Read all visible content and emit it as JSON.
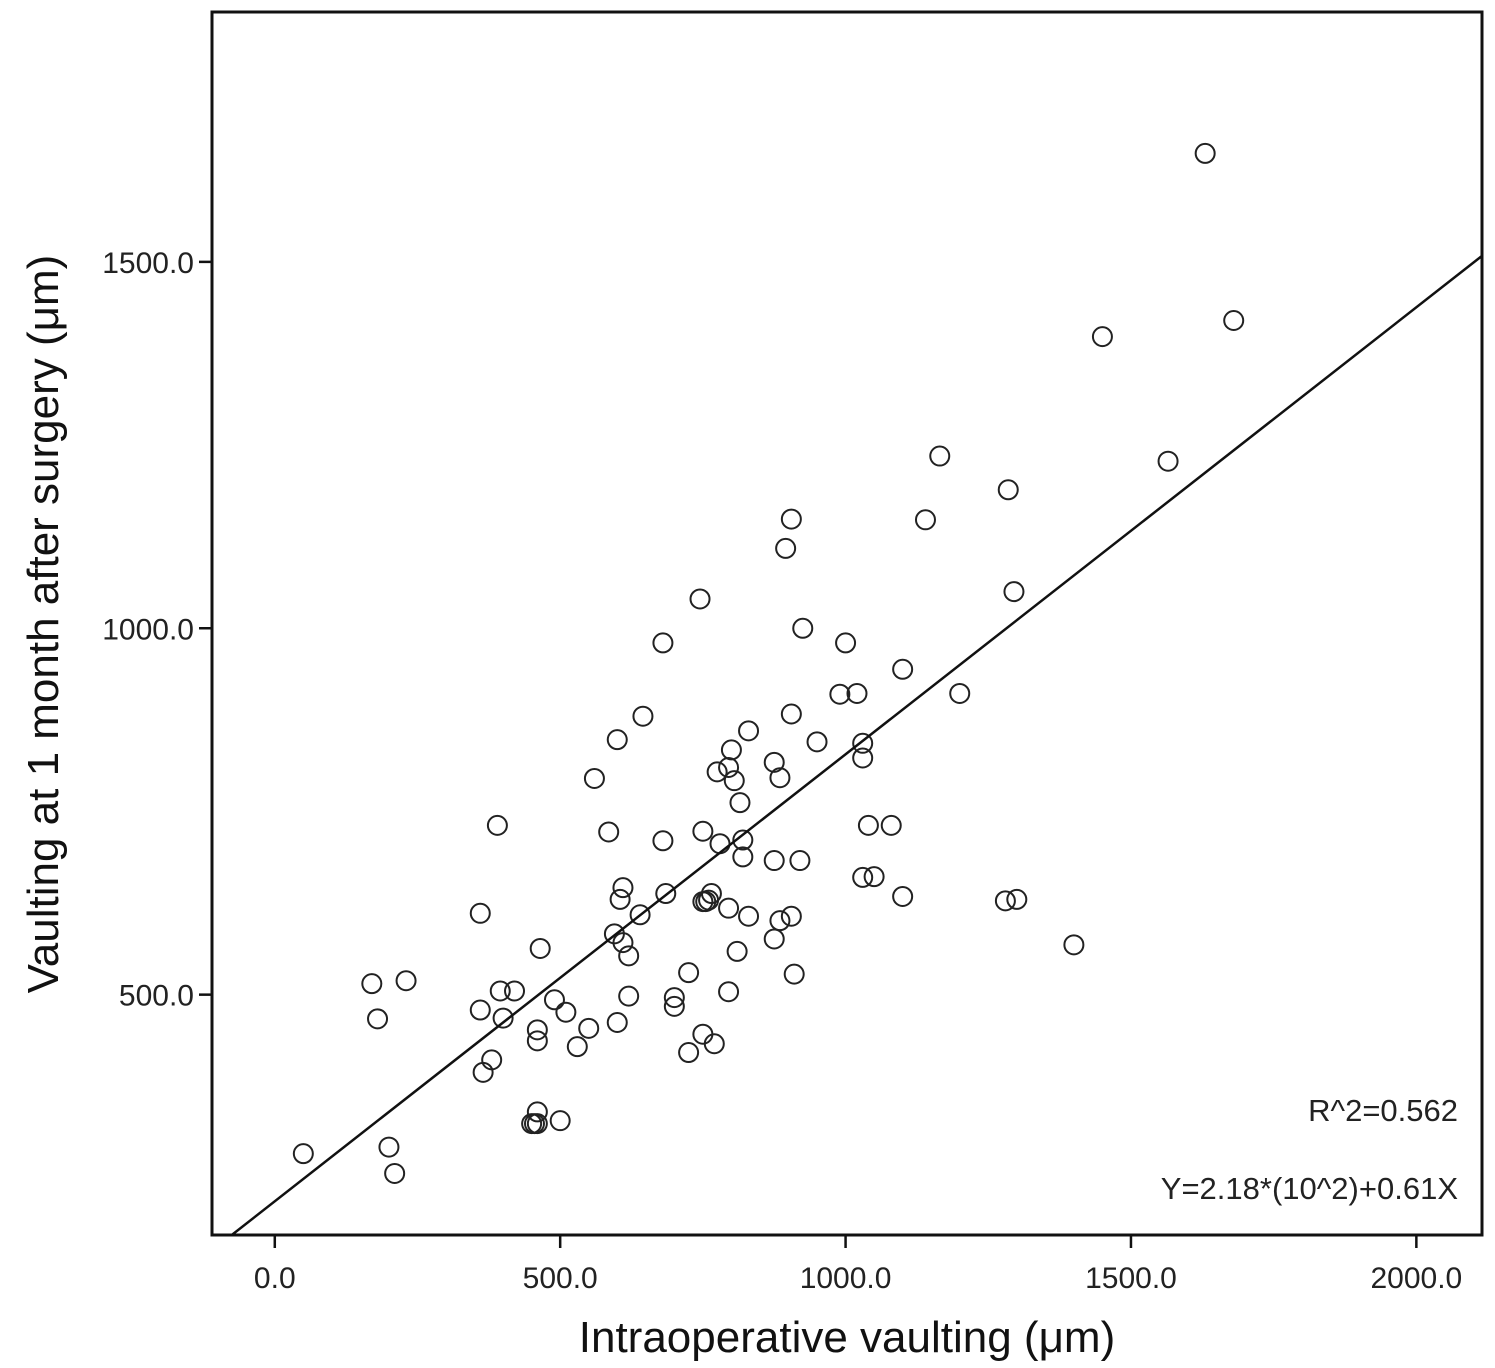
{
  "chart_data": {
    "type": "scatter",
    "xlabel": "Intraoperative vaulting (μm)",
    "ylabel": "Vaulting at 1 month after surgery (μm)",
    "xlim": [
      -110,
      2115
    ],
    "ylim": [
      172,
      1841
    ],
    "xticks": [
      0,
      500,
      1000,
      1500,
      2000
    ],
    "xtick_labels": [
      "0.0",
      "500.0",
      "1000.0",
      "1500.0",
      "2000.0"
    ],
    "yticks": [
      500,
      1000,
      1500
    ],
    "ytick_labels": [
      "500.0",
      "1000.0",
      "1500.0"
    ],
    "grid": false,
    "colors": {
      "points": "#222222",
      "line": "#111111",
      "frame": "#111111"
    },
    "regression": {
      "intercept": 218,
      "slope": 0.61
    },
    "annotations": [
      "R^2=0.562",
      "Y=2.18*(10^2)+0.61X"
    ],
    "points": [
      [
        50,
        283
      ],
      [
        170,
        515
      ],
      [
        180,
        467
      ],
      [
        200,
        292
      ],
      [
        210,
        256
      ],
      [
        230,
        519
      ],
      [
        360,
        611
      ],
      [
        360,
        479
      ],
      [
        365,
        394
      ],
      [
        380,
        411
      ],
      [
        390,
        731
      ],
      [
        395,
        505
      ],
      [
        400,
        468
      ],
      [
        420,
        505
      ],
      [
        450,
        324
      ],
      [
        455,
        324
      ],
      [
        460,
        324
      ],
      [
        460,
        340
      ],
      [
        460,
        437
      ],
      [
        460,
        452
      ],
      [
        465,
        563
      ],
      [
        490,
        493
      ],
      [
        500,
        328
      ],
      [
        510,
        476
      ],
      [
        530,
        429
      ],
      [
        550,
        454
      ],
      [
        560,
        795
      ],
      [
        585,
        722
      ],
      [
        595,
        583
      ],
      [
        600,
        462
      ],
      [
        600,
        848
      ],
      [
        605,
        630
      ],
      [
        610,
        646
      ],
      [
        610,
        571
      ],
      [
        620,
        553
      ],
      [
        620,
        498
      ],
      [
        640,
        609
      ],
      [
        645,
        880
      ],
      [
        680,
        980
      ],
      [
        680,
        710
      ],
      [
        685,
        638
      ],
      [
        700,
        496
      ],
      [
        700,
        484
      ],
      [
        725,
        530
      ],
      [
        725,
        421
      ],
      [
        745,
        1040
      ],
      [
        750,
        723
      ],
      [
        750,
        446
      ],
      [
        750,
        627
      ],
      [
        755,
        627
      ],
      [
        760,
        629
      ],
      [
        765,
        638
      ],
      [
        770,
        433
      ],
      [
        775,
        804
      ],
      [
        780,
        706
      ],
      [
        795,
        618
      ],
      [
        795,
        504
      ],
      [
        795,
        810
      ],
      [
        800,
        834
      ],
      [
        805,
        792
      ],
      [
        810,
        559
      ],
      [
        815,
        762
      ],
      [
        820,
        711
      ],
      [
        820,
        688
      ],
      [
        830,
        607
      ],
      [
        830,
        860
      ],
      [
        875,
        817
      ],
      [
        875,
        576
      ],
      [
        875,
        683
      ],
      [
        885,
        601
      ],
      [
        885,
        796
      ],
      [
        895,
        1109
      ],
      [
        905,
        1149
      ],
      [
        905,
        883
      ],
      [
        905,
        607
      ],
      [
        910,
        528
      ],
      [
        920,
        683
      ],
      [
        925,
        1000
      ],
      [
        950,
        845
      ],
      [
        990,
        910
      ],
      [
        1000,
        980
      ],
      [
        1020,
        911
      ],
      [
        1030,
        843
      ],
      [
        1030,
        823
      ],
      [
        1030,
        660
      ],
      [
        1040,
        731
      ],
      [
        1050,
        661
      ],
      [
        1080,
        731
      ],
      [
        1100,
        944
      ],
      [
        1100,
        634
      ],
      [
        1140,
        1148
      ],
      [
        1165,
        1235
      ],
      [
        1200,
        911
      ],
      [
        1280,
        628
      ],
      [
        1285,
        1189
      ],
      [
        1295,
        1050
      ],
      [
        1300,
        630
      ],
      [
        1400,
        568
      ],
      [
        1450,
        1398
      ],
      [
        1565,
        1228
      ],
      [
        1630,
        1648
      ],
      [
        1680,
        1420
      ]
    ]
  }
}
